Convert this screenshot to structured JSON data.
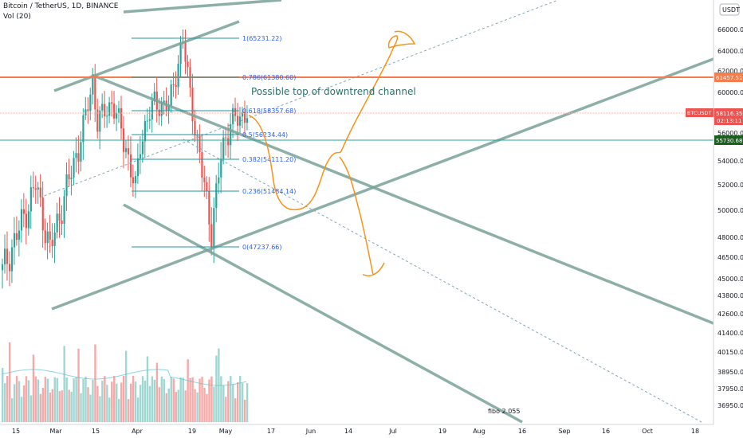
{
  "header": {
    "symbol_line": "Bitcoin / TetherUS, 1D, BINANCE",
    "volume_line": "Vol (20)"
  },
  "chart_data": {
    "type": "candlestick",
    "symbol": "BTCUSDT",
    "interval": "1D",
    "exchange": "BINANCE",
    "currency_label": "USDT",
    "price_axis_ticks": [
      66000,
      64000,
      62000,
      60000,
      58000,
      56000,
      54000,
      52000,
      50000,
      48000,
      46500,
      45000,
      43800,
      42600,
      41400,
      40150,
      38950,
      37950,
      36950
    ],
    "time_axis_ticks": [
      "15",
      "Mar",
      "15",
      "Apr",
      "19",
      "May",
      "17",
      "Jun",
      "14",
      "Jul",
      "19",
      "Aug",
      "16",
      "Sep",
      "16",
      "Oct",
      "18"
    ],
    "price_tags": [
      {
        "label": "61457.51",
        "color": "#f57c4d"
      },
      {
        "label": "BTCUSDT",
        "value": "58116.35",
        "timer": "02:13:11",
        "color": "#ef5350"
      },
      {
        "label": "55730.68",
        "color": "#26a69a"
      }
    ],
    "fib_levels": [
      {
        "label": "1(65231.22)",
        "value": 65231.22
      },
      {
        "label": "0.786(61380.60)",
        "value": 61380.6
      },
      {
        "label": "0.618(58357.68)",
        "value": 58357.68
      },
      {
        "label": "0.5(56234.44)",
        "value": 56234.44
      },
      {
        "label": "0.382(54111.20)",
        "value": 54111.2
      },
      {
        "label": "0.236(51484.14)",
        "value": 51484.14
      },
      {
        "label": "0(47237.66)",
        "value": 47237.66
      }
    ],
    "annotations": [
      {
        "text": "Possible top of downtrend channel"
      },
      {
        "text": "fibo 2.055"
      }
    ],
    "colors": {
      "up": "#26a69a",
      "down": "#ef5350",
      "trend": "#78a39a",
      "horizontal": "#f57c4d",
      "fib": "#2196a3",
      "drawing": "#f7931a"
    }
  }
}
